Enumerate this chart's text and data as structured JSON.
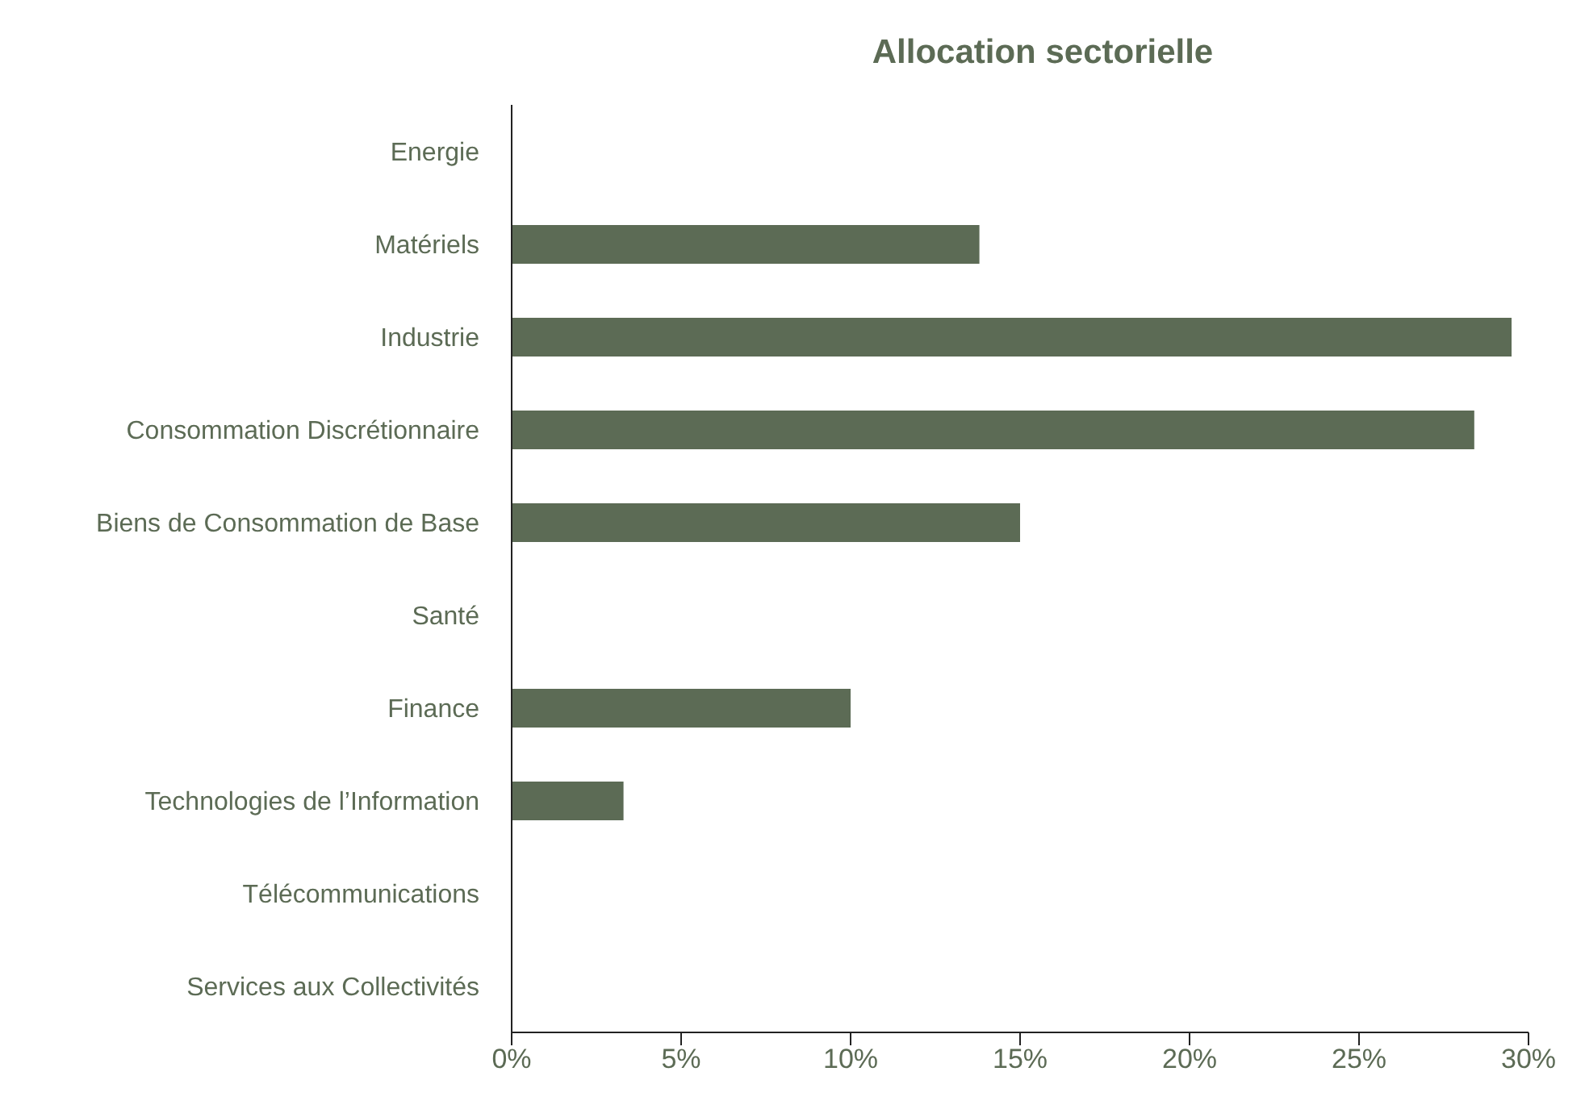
{
  "chart_data": {
    "type": "bar",
    "orientation": "horizontal",
    "title": "Allocation sectorielle",
    "categories": [
      "Energie",
      "Matériels",
      "Industrie",
      "Consommation Discrétionnaire",
      "Biens de Consommation de Base",
      "Santé",
      "Finance",
      "Technologies de l’Information",
      "Télécommunications",
      "Services aux Collectivités"
    ],
    "values": [
      0,
      13.8,
      29.5,
      28.4,
      15.0,
      0,
      10.0,
      3.3,
      0,
      0
    ],
    "color": "#5c6b55",
    "xlim": [
      0,
      30
    ],
    "xticks": [
      {
        "value": 0,
        "label": "0%"
      },
      {
        "value": 5,
        "label": "5%"
      },
      {
        "value": 10,
        "label": "10%"
      },
      {
        "value": 15,
        "label": "15%"
      },
      {
        "value": 20,
        "label": "20%"
      },
      {
        "value": 25,
        "label": "25%"
      },
      {
        "value": 30,
        "label": "30%"
      }
    ],
    "grid": false,
    "legend": false
  }
}
